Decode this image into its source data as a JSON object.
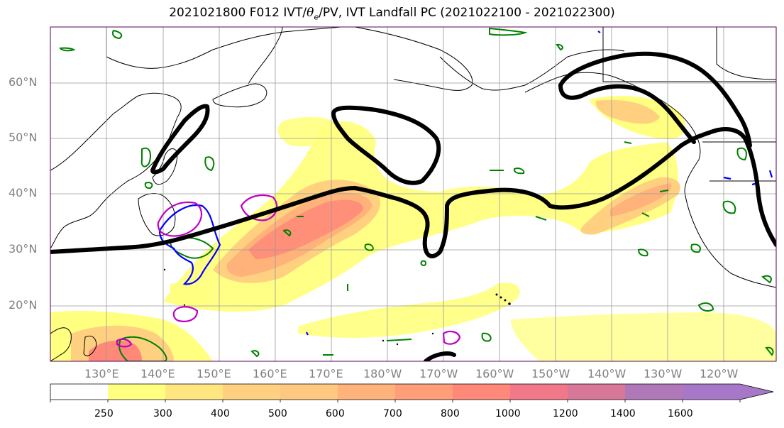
{
  "title": {
    "prefix": "2021021800 F012 IVT/",
    "theta": "θ",
    "theta_sub": "e",
    "suffix": "/PV, IVT Landfall PC (2021022100 - 2021022300)"
  },
  "lat_labels": [
    "60°N",
    "50°N",
    "40°N",
    "30°N",
    "20°N"
  ],
  "lon_labels": [
    "130°E",
    "140°E",
    "150°E",
    "160°E",
    "170°E",
    "180°W",
    "170°W",
    "160°W",
    "150°W",
    "140°W",
    "130°W",
    "120°W"
  ],
  "colorbar": {
    "ticks": [
      "250",
      "300",
      "400",
      "500",
      "600",
      "700",
      "800",
      "1000",
      "1200",
      "1400",
      "1600"
    ],
    "colors": [
      "#ffffff",
      "#ffff80",
      "#ffe680",
      "#ffd080",
      "#ffc880",
      "#ffb27a",
      "#ff9e78",
      "#ff8878",
      "#f07888",
      "#d87898",
      "#b078b8",
      "#a878c8"
    ],
    "extend": "max"
  },
  "legend_colors": {
    "pc_contour": "#000000",
    "theta_e": "#008000",
    "pv_blue": "#0000ff",
    "pv_magenta": "#c000c0"
  }
}
